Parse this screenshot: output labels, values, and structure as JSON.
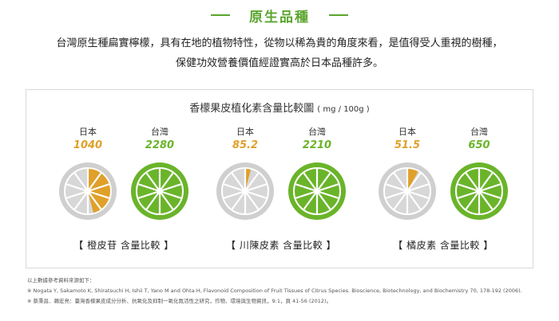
{
  "section": {
    "title": "原生品種"
  },
  "intro": {
    "line1": "台灣原生種扁實檸檬，具有在地的植物特性，從物以稀為貴的角度來看，是值得受人重視的樹種，",
    "line2": "保健功效營養價值經證實高於日本品種許多。"
  },
  "chart": {
    "title": "香檬果皮植化素含量比較圖",
    "unit": "( mg / 100g )"
  },
  "chart_data": {
    "type": "pie",
    "title": "香檬果皮植化素含量比較圖",
    "unit": "mg / 100g",
    "groups": [
      {
        "name": "橙皮苷",
        "caption": "【 橙皮苷 含量比較 】",
        "items": [
          {
            "country": "日本",
            "value": "1040",
            "fraction": 0.46
          },
          {
            "country": "台灣",
            "value": "2280",
            "fraction": 1.0
          }
        ]
      },
      {
        "name": "川陳皮素",
        "caption": "【 川陳皮素 含量比較 】",
        "items": [
          {
            "country": "日本",
            "value": "85.2",
            "fraction": 0.04
          },
          {
            "country": "台灣",
            "value": "2210",
            "fraction": 1.0
          }
        ]
      },
      {
        "name": "橘皮素",
        "caption": "【 橘皮素 含量比較 】",
        "items": [
          {
            "country": "日本",
            "value": "51.5",
            "fraction": 0.08
          },
          {
            "country": "台灣",
            "value": "650",
            "fraction": 1.0
          }
        ]
      }
    ]
  },
  "colors": {
    "japan": "#e0a029",
    "taiwan": "#6ab42a",
    "empty": "#d7d7d7",
    "accent": "#5aa52e"
  },
  "notes": {
    "line1": "以上數據參考資料來源如下：",
    "line2": "※ Nogata Y, Sakamoto K, Shiratsuchi H, Ishii T, Yano M and Ohta H, Flavonoid Composition of Fruit Tissues of Citrus Species. Bioscience, Biotechnology, and Biochemistry 70, 178-192 (2006).",
    "line3": "※ 蔡秉昌．賴宏亮：臺灣香檬果皮成分分析、抗氧化及抑制一氧化氮活性之研究，作物、環境與生物資訊，9:1，頁 41-56 (2012)。"
  }
}
